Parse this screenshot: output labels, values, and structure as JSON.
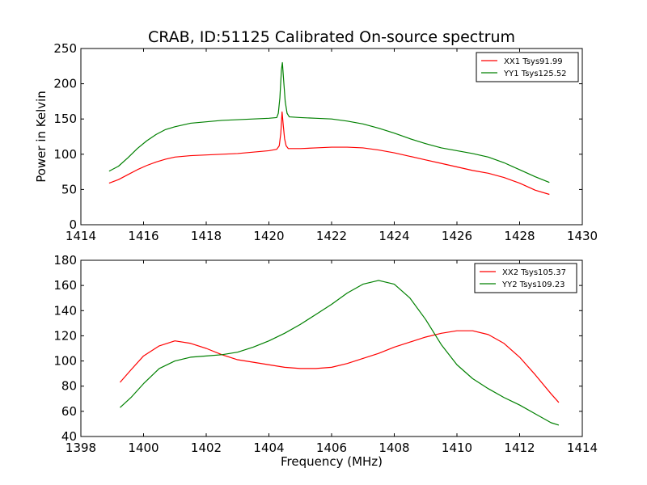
{
  "figure": {
    "title": "CRAB, ID:51125 Calibrated On-source spectrum",
    "background": "#ffffff"
  },
  "chart_data": [
    {
      "type": "line",
      "title": "CRAB, ID:51125 Calibrated On-source spectrum",
      "xlabel": "",
      "ylabel": "Power in Kelvin",
      "xlim": [
        1414,
        1430
      ],
      "ylim": [
        0,
        250
      ],
      "xticks": [
        1414,
        1416,
        1418,
        1420,
        1422,
        1424,
        1426,
        1428,
        1430
      ],
      "yticks": [
        0,
        50,
        100,
        150,
        200,
        250
      ],
      "grid": false,
      "legend": "top-right",
      "series": [
        {
          "name": "XX1 Tsys91.99",
          "color": "#ff0000",
          "points": [
            [
              1414.9,
              59
            ],
            [
              1415.2,
              64
            ],
            [
              1415.5,
              71
            ],
            [
              1415.8,
              78
            ],
            [
              1416.1,
              84
            ],
            [
              1416.4,
              89
            ],
            [
              1416.7,
              93
            ],
            [
              1417.0,
              96
            ],
            [
              1417.5,
              98
            ],
            [
              1418.0,
              99
            ],
            [
              1418.5,
              100
            ],
            [
              1419.0,
              101
            ],
            [
              1419.5,
              103
            ],
            [
              1420.0,
              105
            ],
            [
              1420.25,
              107
            ],
            [
              1420.33,
              112
            ],
            [
              1420.38,
              130
            ],
            [
              1420.42,
              160
            ],
            [
              1420.46,
              140
            ],
            [
              1420.5,
              122
            ],
            [
              1420.55,
              112
            ],
            [
              1420.62,
              108
            ],
            [
              1421.0,
              108
            ],
            [
              1421.5,
              109
            ],
            [
              1422.0,
              110
            ],
            [
              1422.5,
              110
            ],
            [
              1423.0,
              109
            ],
            [
              1423.5,
              106
            ],
            [
              1424.0,
              102
            ],
            [
              1424.5,
              97
            ],
            [
              1425.0,
              92
            ],
            [
              1425.5,
              87
            ],
            [
              1426.0,
              82
            ],
            [
              1426.5,
              77
            ],
            [
              1427.0,
              73
            ],
            [
              1427.5,
              67
            ],
            [
              1428.0,
              59
            ],
            [
              1428.5,
              49
            ],
            [
              1428.95,
              43
            ]
          ]
        },
        {
          "name": "YY1 Tsys125.52",
          "color": "#008000",
          "points": [
            [
              1414.9,
              76
            ],
            [
              1415.2,
              83
            ],
            [
              1415.5,
              95
            ],
            [
              1415.8,
              108
            ],
            [
              1416.1,
              119
            ],
            [
              1416.4,
              128
            ],
            [
              1416.7,
              135
            ],
            [
              1417.0,
              139
            ],
            [
              1417.5,
              144
            ],
            [
              1418.0,
              146
            ],
            [
              1418.5,
              148
            ],
            [
              1419.0,
              149
            ],
            [
              1419.5,
              150
            ],
            [
              1420.0,
              151
            ],
            [
              1420.25,
              152
            ],
            [
              1420.3,
              158
            ],
            [
              1420.35,
              180
            ],
            [
              1420.4,
              220
            ],
            [
              1420.43,
              230
            ],
            [
              1420.47,
              205
            ],
            [
              1420.52,
              175
            ],
            [
              1420.58,
              158
            ],
            [
              1420.65,
              153
            ],
            [
              1421.0,
              152
            ],
            [
              1421.5,
              151
            ],
            [
              1422.0,
              150
            ],
            [
              1422.5,
              147
            ],
            [
              1423.0,
              143
            ],
            [
              1423.5,
              137
            ],
            [
              1424.0,
              130
            ],
            [
              1424.5,
              122
            ],
            [
              1425.0,
              115
            ],
            [
              1425.5,
              109
            ],
            [
              1426.0,
              105
            ],
            [
              1426.5,
              101
            ],
            [
              1427.0,
              96
            ],
            [
              1427.5,
              88
            ],
            [
              1428.0,
              78
            ],
            [
              1428.5,
              68
            ],
            [
              1428.95,
              60
            ]
          ]
        }
      ]
    },
    {
      "type": "line",
      "title": "",
      "xlabel": "Frequency (MHz)",
      "ylabel": "",
      "xlim": [
        1398,
        1414
      ],
      "ylim": [
        40,
        180
      ],
      "xticks": [
        1398,
        1400,
        1402,
        1404,
        1406,
        1408,
        1410,
        1412,
        1414
      ],
      "yticks": [
        40,
        60,
        80,
        100,
        120,
        140,
        160,
        180
      ],
      "grid": false,
      "legend": "top-right",
      "series": [
        {
          "name": "XX2 Tsys105.37",
          "color": "#ff0000",
          "points": [
            [
              1399.25,
              83
            ],
            [
              1399.6,
              93
            ],
            [
              1400.0,
              104
            ],
            [
              1400.5,
              112
            ],
            [
              1401.0,
              116
            ],
            [
              1401.5,
              114
            ],
            [
              1402.0,
              110
            ],
            [
              1402.5,
              105
            ],
            [
              1403.0,
              101
            ],
            [
              1403.5,
              99
            ],
            [
              1404.0,
              97
            ],
            [
              1404.5,
              95
            ],
            [
              1405.0,
              94
            ],
            [
              1405.5,
              94
            ],
            [
              1406.0,
              95
            ],
            [
              1406.5,
              98
            ],
            [
              1407.0,
              102
            ],
            [
              1407.5,
              106
            ],
            [
              1408.0,
              111
            ],
            [
              1408.5,
              115
            ],
            [
              1409.0,
              119
            ],
            [
              1409.5,
              122
            ],
            [
              1410.0,
              124
            ],
            [
              1410.5,
              124
            ],
            [
              1411.0,
              121
            ],
            [
              1411.5,
              114
            ],
            [
              1412.0,
              103
            ],
            [
              1412.5,
              89
            ],
            [
              1413.0,
              74
            ],
            [
              1413.25,
              67
            ]
          ]
        },
        {
          "name": "YY2 Tsys109.23",
          "color": "#008000",
          "points": [
            [
              1399.25,
              63
            ],
            [
              1399.6,
              71
            ],
            [
              1400.0,
              82
            ],
            [
              1400.5,
              94
            ],
            [
              1401.0,
              100
            ],
            [
              1401.5,
              103
            ],
            [
              1402.0,
              104
            ],
            [
              1402.5,
              105
            ],
            [
              1403.0,
              107
            ],
            [
              1403.5,
              111
            ],
            [
              1404.0,
              116
            ],
            [
              1404.5,
              122
            ],
            [
              1405.0,
              129
            ],
            [
              1405.5,
              137
            ],
            [
              1406.0,
              145
            ],
            [
              1406.5,
              154
            ],
            [
              1407.0,
              161
            ],
            [
              1407.5,
              164
            ],
            [
              1408.0,
              161
            ],
            [
              1408.5,
              150
            ],
            [
              1409.0,
              133
            ],
            [
              1409.5,
              113
            ],
            [
              1410.0,
              97
            ],
            [
              1410.5,
              86
            ],
            [
              1411.0,
              78
            ],
            [
              1411.5,
              71
            ],
            [
              1412.0,
              65
            ],
            [
              1412.5,
              58
            ],
            [
              1413.0,
              51
            ],
            [
              1413.25,
              49
            ]
          ]
        }
      ]
    }
  ]
}
